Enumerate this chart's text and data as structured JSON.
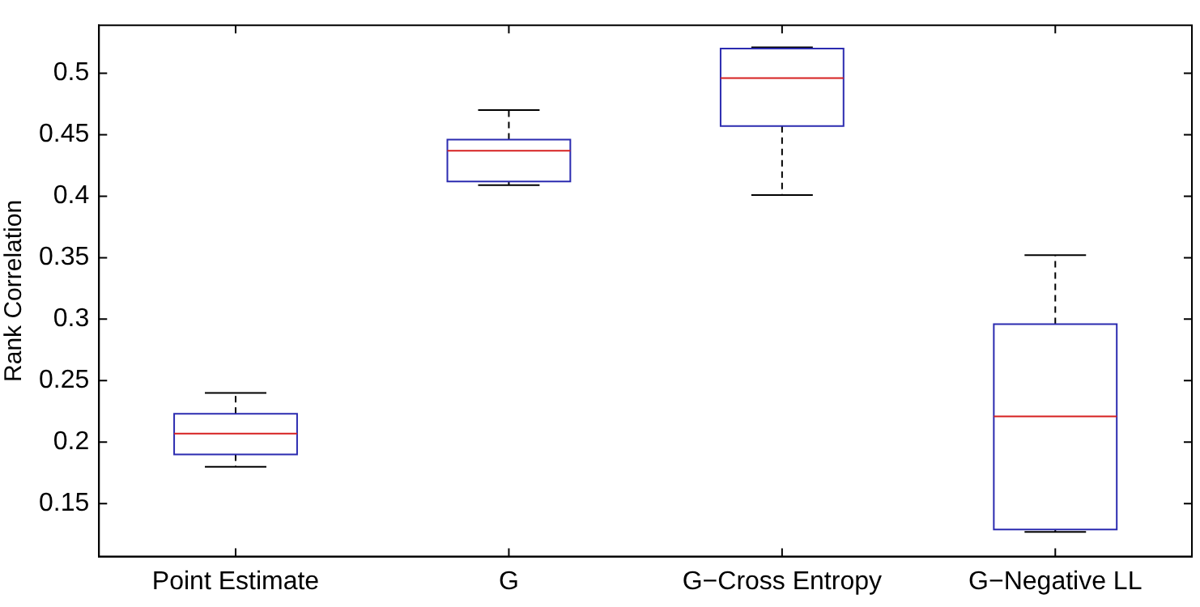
{
  "chart_data": {
    "type": "box",
    "ylabel": "Rank Correlation",
    "categories": [
      "Point Estimate",
      "G",
      "G−Cross Entropy",
      "G−Negative LL"
    ],
    "boxes": [
      {
        "low": 0.18,
        "q1": 0.19,
        "median": 0.207,
        "q3": 0.223,
        "high": 0.24
      },
      {
        "low": 0.409,
        "q1": 0.412,
        "median": 0.437,
        "q3": 0.446,
        "high": 0.47
      },
      {
        "low": 0.401,
        "q1": 0.457,
        "median": 0.496,
        "q3": 0.52,
        "high": 0.521
      },
      {
        "low": 0.127,
        "q1": 0.129,
        "median": 0.221,
        "q3": 0.296,
        "high": 0.352
      }
    ],
    "color": "#2b2bb0",
    "ylim": [
      0.107,
      0.539
    ],
    "yticks": [
      0.15,
      0.2,
      0.25,
      0.3,
      0.35,
      0.4,
      0.45,
      0.5
    ],
    "grid": false,
    "legend": false
  }
}
